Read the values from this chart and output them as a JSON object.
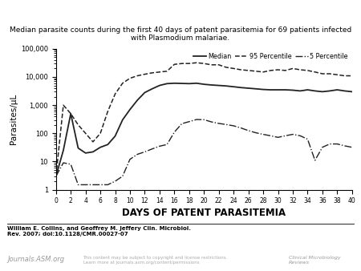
{
  "title": "Median parasite counts during the first 40 days of patent parasitemia for 69 patients infected\nwith Plasmodium malariae.",
  "xlabel": "DAYS OF PATENT PARASITEMIA",
  "ylabel": "Parasites/µL",
  "background_color": "#ffffff",
  "days": [
    0,
    1,
    2,
    3,
    4,
    5,
    6,
    7,
    8,
    9,
    10,
    11,
    12,
    13,
    14,
    15,
    16,
    17,
    18,
    19,
    20,
    21,
    22,
    23,
    24,
    25,
    26,
    27,
    28,
    29,
    30,
    31,
    32,
    33,
    34,
    35,
    36,
    37,
    38,
    39,
    40
  ],
  "median": [
    3,
    25,
    500,
    30,
    20,
    22,
    32,
    40,
    80,
    300,
    700,
    1500,
    2800,
    3800,
    5000,
    5800,
    6000,
    5900,
    5800,
    6000,
    5500,
    5200,
    5000,
    4800,
    4500,
    4200,
    4000,
    3800,
    3600,
    3500,
    3500,
    3500,
    3400,
    3200,
    3500,
    3200,
    3000,
    3200,
    3500,
    3200,
    3000
  ],
  "p95": [
    3,
    1000,
    500,
    200,
    100,
    50,
    100,
    600,
    2500,
    6000,
    9000,
    11000,
    12500,
    14000,
    15000,
    16000,
    28000,
    30000,
    30000,
    32000,
    30000,
    27000,
    27000,
    22000,
    20000,
    18000,
    17000,
    16000,
    15000,
    17000,
    18000,
    17000,
    20000,
    18000,
    17000,
    15000,
    13000,
    13000,
    12000,
    11000,
    11000
  ],
  "p5": [
    3,
    9,
    8,
    1.5,
    1.5,
    1.5,
    1.5,
    1.5,
    2,
    3,
    12,
    18,
    22,
    28,
    35,
    40,
    110,
    220,
    260,
    310,
    305,
    255,
    225,
    205,
    185,
    155,
    125,
    105,
    92,
    82,
    72,
    82,
    92,
    82,
    62,
    11,
    32,
    42,
    42,
    36,
    32
  ],
  "median_style": {
    "color": "#222222",
    "lw": 1.3,
    "ls": "-"
  },
  "p95_style": {
    "color": "#222222",
    "lw": 1.1,
    "ls": "--"
  },
  "p5_style": {
    "color": "#222222",
    "lw": 1.0,
    "ls": "-."
  },
  "legend_labels": [
    "Median",
    "95 Percentile",
    "5 Percentile"
  ],
  "legend_line_styles": [
    "-",
    "--",
    "-."
  ],
  "ylim": [
    1,
    100000
  ],
  "xlim": [
    0,
    40
  ],
  "xticks": [
    0,
    2,
    4,
    6,
    8,
    10,
    12,
    14,
    16,
    18,
    20,
    22,
    24,
    26,
    28,
    30,
    32,
    34,
    36,
    38,
    40
  ],
  "ytick_labels": {
    "1": "1",
    "10": "10",
    "100": "100",
    "1000": "1,000",
    "10000": "10,000",
    "100000": "100,000"
  },
  "footer_author": "William E. Collins, and Geoffrey M. Jeffery Clin. Microbiol.\nRev. 2007; doi:10.1128/CMR.00027-07",
  "footer_journal": "Clinical Microbiology\nReviews",
  "footer_asm": "Journals.ASM.org",
  "footer_rights": "This content may be subject to copyright and license restrictions.\nLearn more at journals.asm.org/content/permissions"
}
